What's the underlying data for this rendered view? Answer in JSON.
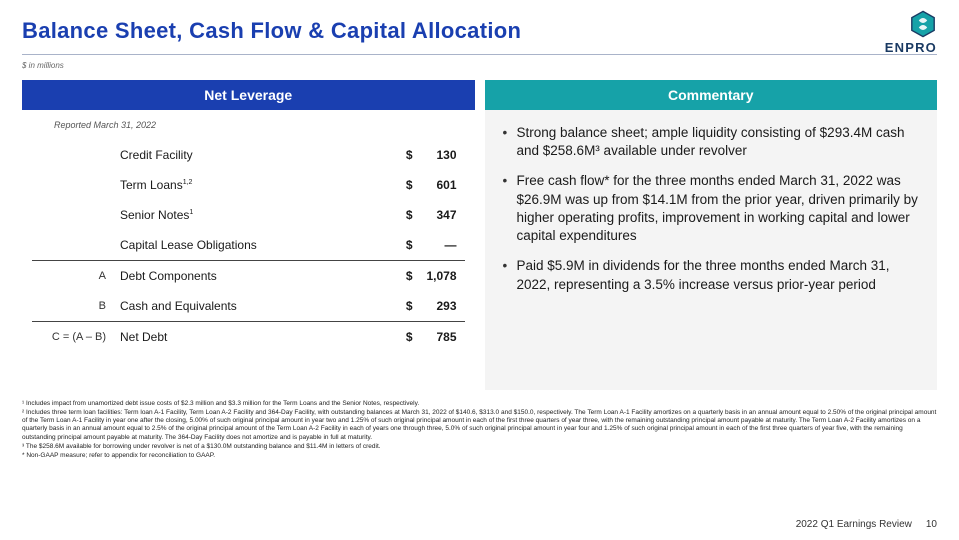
{
  "title": "Balance Sheet, Cash Flow & Capital Allocation",
  "units": "$ in millions",
  "brand": "ENPRO",
  "headers": {
    "left": "Net Leverage",
    "right": "Commentary"
  },
  "reported": "Reported March 31, 2022",
  "currency": "$",
  "rows": [
    {
      "code": "",
      "label": "Credit Facility",
      "sup": "",
      "value": "130",
      "top": false
    },
    {
      "code": "",
      "label": "Term Loans",
      "sup": "1,2",
      "value": "601",
      "top": false
    },
    {
      "code": "",
      "label": "Senior Notes",
      "sup": "1",
      "value": "347",
      "top": false
    },
    {
      "code": "",
      "label": "Capital Lease Obligations",
      "sup": "",
      "value": "—",
      "top": false
    },
    {
      "code": "A",
      "label": "Debt Components",
      "sup": "",
      "value": "1,078",
      "top": true
    },
    {
      "code": "B",
      "label": "Cash and Equivalents",
      "sup": "",
      "value": "293",
      "top": false
    },
    {
      "code": "C = (A – B)",
      "label": "Net Debt",
      "sup": "",
      "value": "785",
      "top": true
    }
  ],
  "commentary": [
    "Strong balance sheet; ample liquidity consisting of $293.4M cash and $258.6M³ available under revolver",
    "Free cash flow* for the three months ended March 31, 2022 was $26.9M was up from $14.1M from the prior year, driven primarily by higher operating profits, improvement in working capital and lower capital expenditures",
    "Paid $5.9M in dividends for the three months ended March 31, 2022, representing a 3.5% increase versus prior-year period"
  ],
  "footnotes": [
    "¹ Includes impact from unamortized debt issue costs of $2.3 million and $3.3 million for the Term Loans and the Senior Notes, respectively.",
    "² Includes three term loan facilities: Term loan A-1 Facility, Term Loan A-2 Facility and 364-Day Facility, with outstanding balances at March 31, 2022 of $140.6, $313.0 and $150.0, respectively. The Term Loan A-1 Facility amortizes on a quarterly basis in an annual amount equal to 2.50% of the original principal amount of the Term Loan A-1 Facility in year one after the closing, 5.00% of such original principal amount in year two and 1.25% of such original principal amount in each of the first three quarters of year three, with the remaining outstanding principal amount payable at maturity. The Term Loan A-2 Facility amortizes on a quarterly basis in an annual amount equal to 2.5% of the original principal amount of the Term Loan A-2 Facility in each of years one through three, 5.0% of such original principal amount in year four and 1.25% of such original principal amount in each of the first three quarters of year five, with the remaining outstanding principal amount payable at maturity. The 364-Day Facility does not amortize and is payable in full at maturity.",
    "³ The $258.6M available for borrowing under revolver is net of a $130.0M outstanding balance and $11.4M in letters of credit.",
    "* Non-GAAP measure; refer to appendix for reconciliation to GAAP."
  ],
  "footer": {
    "label": "2022 Q1 Earnings Review",
    "page": "10"
  },
  "colors": {
    "title": "#1a3fb0",
    "left_header_bg": "#1a3fb0",
    "right_header_bg": "#16a2a8",
    "right_body_bg": "#f4f4f4",
    "rule": "#a9b3c9"
  }
}
